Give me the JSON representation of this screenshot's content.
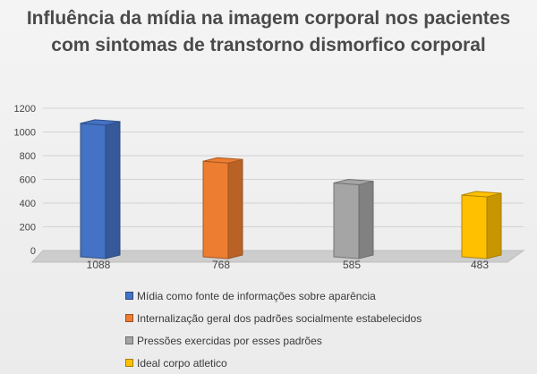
{
  "chart_data": {
    "type": "bar",
    "title": "Influência da mídia na imagem corporal nos pacientes com sintomas de transtorno dismorfico corporal",
    "categories": [
      "1088",
      "768",
      "585",
      "483"
    ],
    "values": [
      1088,
      768,
      585,
      483
    ],
    "ylim": [
      0,
      1200
    ],
    "yticks": [
      "0",
      "200",
      "400",
      "600",
      "800",
      "1000",
      "1200"
    ],
    "grid": true,
    "legend_position": "bottom",
    "series": [
      {
        "name": "Mídia como fonte de informações sobre aparência",
        "value": 1088,
        "color": "#4472c4"
      },
      {
        "name": "Internalização geral dos padrões socialmente estabelecidos",
        "value": 768,
        "color": "#ed7d31"
      },
      {
        "name": "Pressões exercidas por esses padrões",
        "value": 585,
        "color": "#a5a5a5"
      },
      {
        "name": "Ideal corpo atletico",
        "value": 483,
        "color": "#ffc000"
      }
    ]
  }
}
